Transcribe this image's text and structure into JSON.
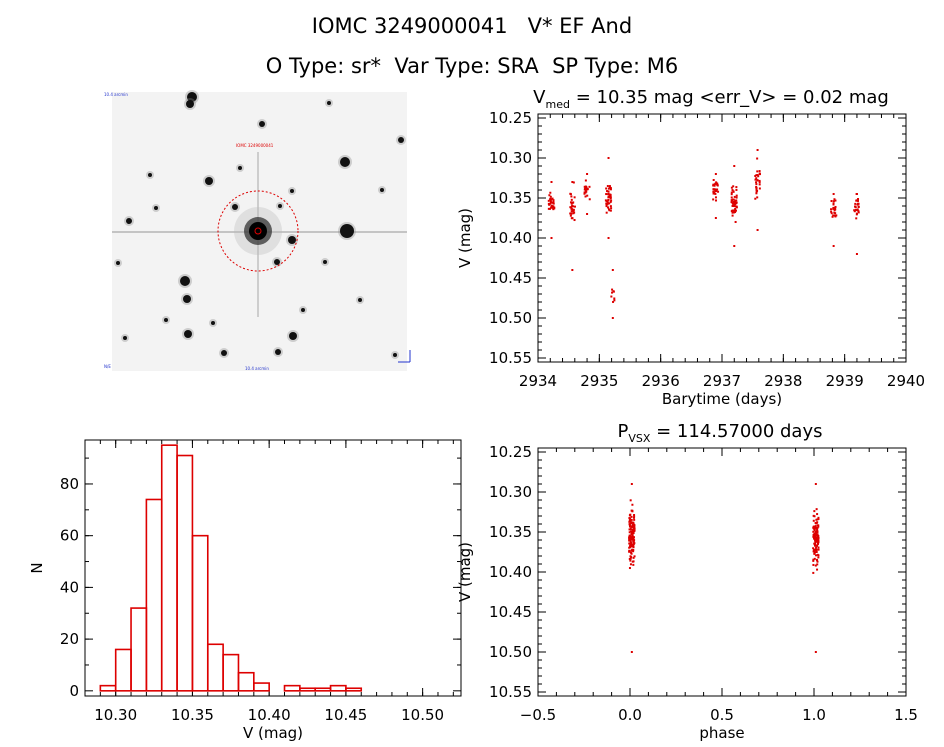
{
  "header": {
    "line1": "IOMC 3249000041   V* EF And",
    "line2": "O Type: sr*  Var Type: SRA  SP Type: M6"
  },
  "colors": {
    "points": "#dd0000",
    "bars": "#dd0000",
    "axes": "#000000"
  },
  "finder": {
    "icon": "star-field-finder-image",
    "tiny_labels": [
      "10.4 arcmin",
      "IOMC 3249000041",
      "10.4 arcmin",
      "N/E"
    ]
  },
  "chart_data": [
    {
      "id": "lightcurve",
      "type": "scatter",
      "title_sym": "V",
      "title_sub": "med",
      "title_rest": " = 10.35 mag <err_V> = 0.02 mag",
      "xlabel": "Barytime (days)",
      "ylabel": "V (mag)",
      "xlim": [
        2934,
        2940
      ],
      "ylim": [
        10.555,
        10.245
      ],
      "xticks": [
        2934,
        2935,
        2936,
        2937,
        2938,
        2939,
        2940
      ],
      "xtick_labels": [
        "2934",
        "2935",
        "2936",
        "2937",
        "2938",
        "2939",
        "2940"
      ],
      "yticks": [
        10.25,
        10.3,
        10.35,
        10.4,
        10.45,
        10.5,
        10.55
      ],
      "ytick_labels": [
        "10.25",
        "10.30",
        "10.35",
        "10.40",
        "10.45",
        "10.50",
        "10.55"
      ],
      "clusters": [
        {
          "x": 2934.22,
          "y_min": 10.33,
          "y_max": 10.4,
          "center": 10.355,
          "n": 30
        },
        {
          "x": 2934.56,
          "y_min": 10.33,
          "y_max": 10.44,
          "center": 10.36,
          "n": 30
        },
        {
          "x": 2934.8,
          "y_min": 10.32,
          "y_max": 10.37,
          "center": 10.34,
          "n": 20
        },
        {
          "x": 2935.15,
          "y_min": 10.3,
          "y_max": 10.4,
          "center": 10.35,
          "n": 45
        },
        {
          "x": 2935.22,
          "y_min": 10.44,
          "y_max": 10.5,
          "center": 10.47,
          "n": 8
        },
        {
          "x": 2936.9,
          "y_min": 10.32,
          "y_max": 10.375,
          "center": 10.34,
          "n": 28
        },
        {
          "x": 2937.2,
          "y_min": 10.31,
          "y_max": 10.41,
          "center": 10.355,
          "n": 50
        },
        {
          "x": 2937.58,
          "y_min": 10.29,
          "y_max": 10.39,
          "center": 10.33,
          "n": 28
        },
        {
          "x": 2938.82,
          "y_min": 10.345,
          "y_max": 10.41,
          "center": 10.365,
          "n": 25
        },
        {
          "x": 2939.2,
          "y_min": 10.345,
          "y_max": 10.42,
          "center": 10.36,
          "n": 25
        }
      ]
    },
    {
      "id": "histogram",
      "type": "bar",
      "xlabel": "V (mag)",
      "ylabel": "N",
      "xlim": [
        10.28,
        10.525
      ],
      "ylim": [
        -2,
        97
      ],
      "xticks": [
        10.3,
        10.35,
        10.4,
        10.45,
        10.5
      ],
      "xtick_labels": [
        "10.30",
        "10.35",
        "10.40",
        "10.45",
        "10.50"
      ],
      "yticks": [
        0,
        20,
        40,
        60,
        80
      ],
      "ytick_labels": [
        "0",
        "20",
        "40",
        "60",
        "80"
      ],
      "bin_edges": [
        10.29,
        10.3,
        10.31,
        10.32,
        10.33,
        10.34,
        10.35,
        10.36,
        10.37,
        10.38,
        10.39,
        10.4,
        10.41,
        10.42,
        10.43,
        10.44,
        10.45,
        10.46,
        10.47,
        10.48,
        10.49,
        10.5
      ],
      "values": [
        2,
        16,
        32,
        74,
        95,
        91,
        60,
        18,
        14,
        7,
        3,
        0,
        2,
        1,
        1,
        2,
        1,
        0,
        0,
        0,
        0
      ]
    },
    {
      "id": "phased",
      "type": "scatter",
      "title_sym": "P",
      "title_sub": "VSX",
      "title_rest": " = 114.57000 days",
      "xlabel": "phase",
      "ylabel": "V (mag)",
      "xlim": [
        -0.5,
        1.5
      ],
      "ylim": [
        10.555,
        10.245
      ],
      "xticks": [
        -0.5,
        0.0,
        0.5,
        1.0,
        1.5
      ],
      "xtick_labels": [
        "−0.5",
        "0.0",
        "0.5",
        "1.0",
        "1.5"
      ],
      "yticks": [
        10.25,
        10.3,
        10.35,
        10.4,
        10.45,
        10.5,
        10.55
      ],
      "ytick_labels": [
        "10.25",
        "10.30",
        "10.35",
        "10.40",
        "10.45",
        "10.50",
        "10.55"
      ],
      "clusters": [
        {
          "x": 0.01,
          "width": 0.03,
          "y_min": 10.29,
          "y_max": 10.5,
          "center": 10.355,
          "n": 130
        },
        {
          "x": 1.01,
          "width": 0.03,
          "y_min": 10.29,
          "y_max": 10.5,
          "center": 10.355,
          "n": 130
        }
      ]
    }
  ]
}
